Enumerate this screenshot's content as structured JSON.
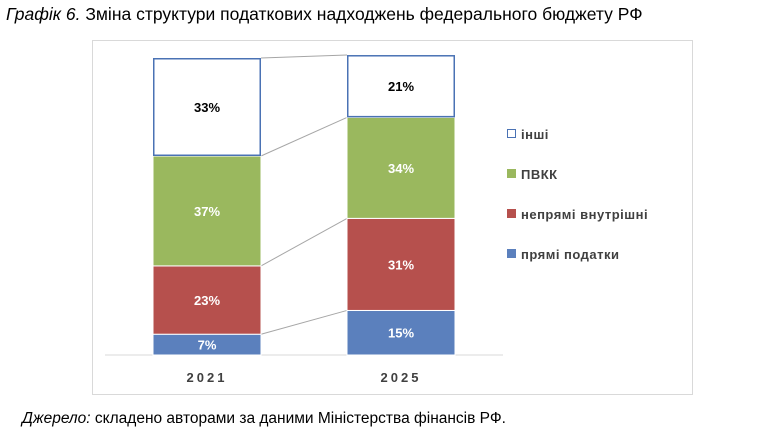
{
  "title": {
    "prefix": "Графік 6.",
    "text": "Зміна структури податкових надходжень федерального бюджету РФ"
  },
  "source": {
    "prefix": "Джерело:",
    "text": "складено авторами за даними Міністерства фінансів РФ."
  },
  "chart_data": {
    "type": "bar",
    "stacked": true,
    "percent": true,
    "categories": [
      "2021",
      "2025"
    ],
    "series": [
      {
        "name": "прямі податки",
        "values": [
          7,
          15
        ],
        "color": "#5b80bd",
        "label_color": "#ffffff"
      },
      {
        "name": "непрямі внутрішні",
        "values": [
          23,
          31
        ],
        "color": "#b6504d",
        "label_color": "#ffffff"
      },
      {
        "name": "ПВКК",
        "values": [
          37,
          34
        ],
        "color": "#9ab85e",
        "label_color": "#ffffff"
      },
      {
        "name": "інші",
        "values": [
          33,
          21
        ],
        "color": "#ffffff",
        "outline": "#4a72b4",
        "label_color": "#000000"
      }
    ],
    "legend_order": [
      "інші",
      "ПВКК",
      "непрямі внутрішні",
      "прямі податки"
    ],
    "legend_position": "right",
    "series_lines": true,
    "grid": false
  }
}
